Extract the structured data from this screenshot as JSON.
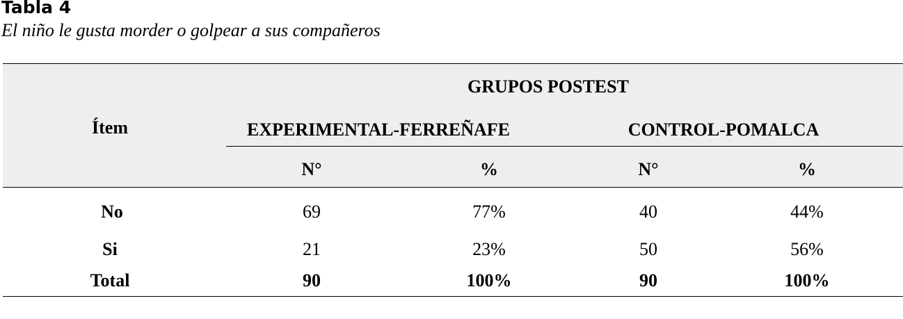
{
  "label": "Tabla 4",
  "caption": "El niño le gusta morder o golpear a sus compañeros",
  "header": {
    "item": "Ítem",
    "group_title": "GRUPOS POSTEST",
    "group_experimental": "EXPERIMENTAL-FERREÑAFE",
    "group_control": "CONTROL-POMALCA",
    "exp_n": "N°",
    "exp_pct": "%",
    "ctrl_n": "N°",
    "ctrl_pct": "%"
  },
  "rows": [
    {
      "item": "No",
      "exp_n": "69",
      "exp_pct": "77%",
      "ctrl_n": "40",
      "ctrl_pct": "44%"
    },
    {
      "item": "Si",
      "exp_n": "21",
      "exp_pct": "23%",
      "ctrl_n": "50",
      "ctrl_pct": "56%"
    }
  ],
  "total": {
    "item": "Total",
    "exp_n": "90",
    "exp_pct": "100%",
    "ctrl_n": "90",
    "ctrl_pct": "100%"
  }
}
